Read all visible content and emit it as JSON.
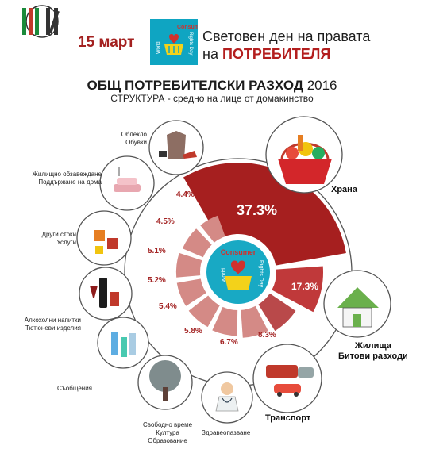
{
  "header": {
    "logo_text": "НСИ",
    "date": "15 март",
    "badge_lines": [
      "Consumer",
      "World",
      "Rights Day"
    ],
    "headline_line1": "Световен ден на правата",
    "headline_line2_prefix": "на",
    "headline_line2_emphasis": "ПОТРЕБИТЕЛЯ"
  },
  "title_bold": "ОБЩ ПОТРЕБИТЕЛСКИ РАЗХОД",
  "title_year": "2016",
  "subtitle": "СТРУКТУРА - средно на лице от домакинство",
  "center_badge_lines": [
    "Consumer",
    "World",
    "Rights Day"
  ],
  "colors": {
    "dark_red": "#a61f1f",
    "mid_red": "#c0393a",
    "light_pink": "#d48a86",
    "teal": "#18a9c4"
  },
  "chart_data": {
    "type": "bar",
    "layout": "radial",
    "categories": [
      "Храна",
      "Жилища / Битови разходи",
      "Транспорт",
      "Здравеопазване",
      "Свободно време / Култура / Образование",
      "Съобщения",
      "Алкохолни напитки / Тютюневи изделия",
      "Други стоки / Услуги",
      "Жилищно обзавеждане / Поддържане на дома",
      "Облекло / Обувки"
    ],
    "values": [
      37.3,
      17.3,
      8.3,
      6.7,
      5.8,
      5.4,
      5.2,
      5.1,
      4.5,
      4.4
    ],
    "value_labels": [
      "37.3%",
      "17.3%",
      "8.3%",
      "6.7%",
      "5.8%",
      "5.4%",
      "5.2%",
      "5.1%",
      "4.5%",
      "4.4%"
    ],
    "unit": "%"
  },
  "labels": {
    "food": [
      "Храна"
    ],
    "housing": [
      "Жилища",
      "Битови разходи"
    ],
    "transport": [
      "Транспорт"
    ],
    "health": [
      "Здравеопазване"
    ],
    "leisure": [
      "Свободно време",
      "Култура",
      "Образование"
    ],
    "comm": [
      "Съобщения"
    ],
    "alcohol": [
      "Алкохолни напитки",
      "Тютюневи изделия"
    ],
    "other": [
      "Други стоки",
      "Услуги"
    ],
    "furnish": [
      "Жилищно обзавеждане",
      "Поддържане на дома"
    ],
    "clothing": [
      "Облекло",
      "Обувки"
    ]
  }
}
